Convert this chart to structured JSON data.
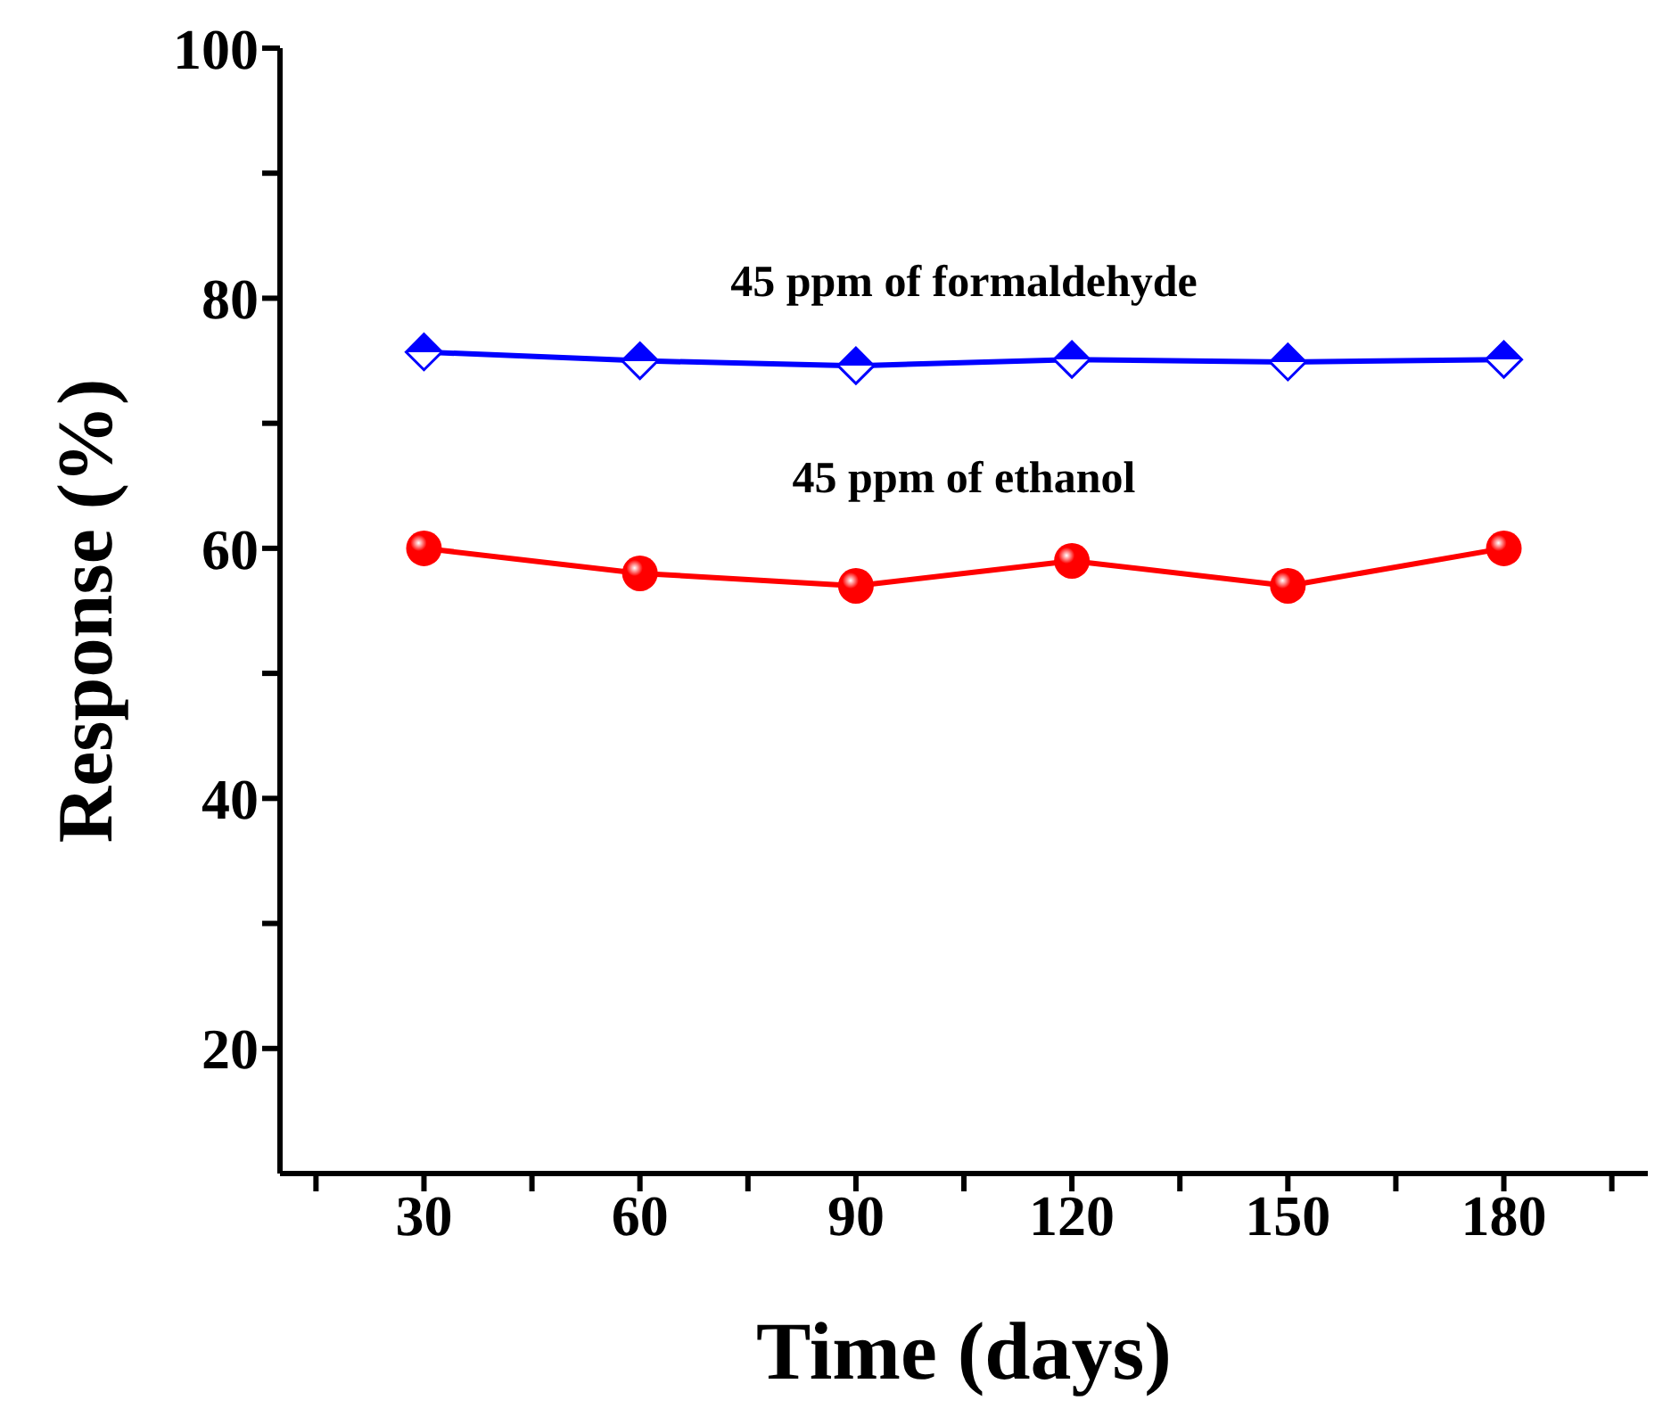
{
  "chart_data": {
    "type": "line",
    "xlabel": "Time (days)",
    "ylabel": "Response (%)",
    "x": [
      30,
      60,
      90,
      120,
      150,
      180
    ],
    "series": [
      {
        "name": "45 ppm of formaldehyde",
        "color": "#0000ff",
        "values": [
          75.7,
          75,
          74.6,
          75.1,
          74.9,
          75.1
        ],
        "marker": "diamond"
      },
      {
        "name": "45 ppm of ethanol",
        "color": "#ff0000",
        "values": [
          60,
          58,
          57,
          59,
          57,
          60
        ],
        "marker": "circle"
      }
    ],
    "xlim": [
      10,
      200
    ],
    "xticks": [
      {
        "value": 15,
        "label": null
      },
      30,
      {
        "value": 45,
        "label": null
      },
      60,
      {
        "value": 75,
        "label": null
      },
      90,
      {
        "value": 105,
        "label": null
      },
      120,
      {
        "value": 135,
        "label": null
      },
      150,
      {
        "value": 165,
        "label": null
      },
      180,
      {
        "value": 195,
        "label": null
      }
    ],
    "ylim": [
      10,
      100
    ],
    "yticks": [
      20,
      {
        "value": 30,
        "label": null
      },
      40,
      {
        "value": 50,
        "label": null
      },
      60,
      {
        "value": 70,
        "label": null
      },
      80,
      {
        "value": 90,
        "label": null
      },
      100
    ],
    "grid": false,
    "line_style": "solid"
  }
}
